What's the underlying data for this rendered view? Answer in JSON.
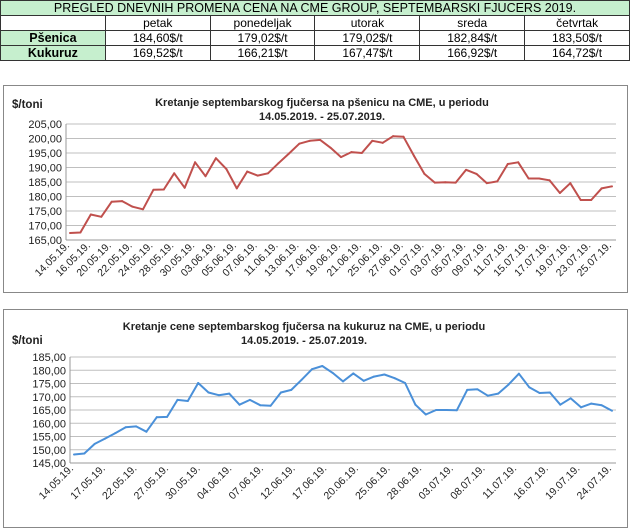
{
  "table": {
    "title": "PREGLED DNEVNIH PROMENA CENA NA CME GROUP, SEPTEMBARSKI  FJUCERS 2019.",
    "days": [
      "petak",
      "ponedeljak",
      "utorak",
      "sreda",
      "četvrtak"
    ],
    "rows": [
      {
        "name": "Pšenica",
        "values": [
          "184,60$/t",
          "179,02$/t",
          "179,02$/t",
          "182,84$/t",
          "183,50$/t"
        ]
      },
      {
        "name": "Kukuruz",
        "values": [
          "169,52$/t",
          "166,21$/t",
          "167,47$/t",
          "166,92$/t",
          "164,72$/t"
        ]
      }
    ]
  },
  "chart_data": [
    {
      "type": "line",
      "title": "Kretanje septembarskog fjučersa na  pšenicu na CME, u periodu",
      "subtitle": "14.05.2019. - 25.07.2019.",
      "ylabel": "$/toni",
      "ylim": [
        165,
        205
      ],
      "yticks": [
        "165,00",
        "170,00",
        "175,00",
        "180,00",
        "185,00",
        "190,00",
        "195,00",
        "200,00",
        "205,00"
      ],
      "xtick_labels": [
        "14.05.19.",
        "16.05.19.",
        "20.05.19.",
        "22.05.19.",
        "24.05.19.",
        "28.05.19.",
        "30.05.19.",
        "03.06.19.",
        "05.06.19.",
        "07.06.19.",
        "11.06.19.",
        "13.06.19.",
        "17.06.19.",
        "19.06.19.",
        "21.06.19.",
        "25.06.19.",
        "27.06.19.",
        "01.07.19.",
        "03.07.19.",
        "05.07.19.",
        "09.07.19.",
        "11.07.19.",
        "15.07.19.",
        "17.07.19.",
        "19.07.19.",
        "23.07.19.",
        "25.07.19."
      ],
      "grid": true,
      "color": "#c0504d",
      "series": [
        {
          "values": [
            167.4,
            167.6,
            173.8,
            173.0,
            178.2,
            178.4,
            176.5,
            175.6,
            182.3,
            182.4,
            188.0,
            183.0,
            191.8,
            187.0,
            193.2,
            189.5,
            182.8,
            188.6,
            187.2,
            188.0,
            191.5,
            194.8,
            198.2,
            199.2,
            199.5,
            196.8,
            193.6,
            195.3,
            195.0,
            199.2,
            198.5,
            200.8,
            200.6,
            194.0,
            187.8,
            184.8,
            184.9,
            184.8,
            189.2,
            187.8,
            184.6,
            185.2,
            191.2,
            191.8,
            186.2,
            186.2,
            185.6,
            181.2,
            184.6,
            178.8,
            178.8,
            182.8,
            183.5
          ]
        }
      ]
    },
    {
      "type": "line",
      "title": "Kretanje cene septembarskog fjučersa na  kukuruz na CME, u periodu",
      "subtitle": "14.05.2019. - 25.07.2019.",
      "ylabel": "$/toni",
      "ylim": [
        145,
        185
      ],
      "yticks": [
        "145,00",
        "150,00",
        "155,00",
        "160,00",
        "165,00",
        "170,00",
        "175,00",
        "180,00",
        "185,00"
      ],
      "xtick_labels": [
        "14.05.19.",
        "17.05.19.",
        "22.05.19.",
        "27.05.19.",
        "30.05.19.",
        "04.06.19.",
        "07.06.19.",
        "12.06.19.",
        "17.06.19.",
        "20.06.19.",
        "25.06.19.",
        "28.06.19.",
        "03.07.19.",
        "08.07.19.",
        "11.07.19.",
        "16.07.19.",
        "19.07.19.",
        "24.07.19."
      ],
      "grid": true,
      "color": "#4a90d9",
      "series": [
        {
          "values": [
            148.2,
            148.6,
            152.2,
            154.2,
            156.3,
            158.5,
            158.8,
            156.8,
            162.3,
            162.4,
            168.8,
            168.4,
            175.2,
            171.6,
            170.6,
            171.2,
            167.0,
            168.8,
            166.8,
            166.6,
            171.6,
            172.6,
            176.4,
            180.4,
            181.6,
            179.0,
            175.8,
            178.8,
            176.0,
            177.6,
            178.4,
            177.0,
            175.2,
            167.0,
            163.3,
            165.0,
            165.0,
            164.9,
            172.6,
            172.8,
            170.4,
            171.2,
            174.6,
            178.7,
            173.6,
            171.4,
            171.6,
            167.0,
            169.4,
            166.0,
            167.4,
            166.8,
            164.7
          ]
        }
      ]
    }
  ]
}
